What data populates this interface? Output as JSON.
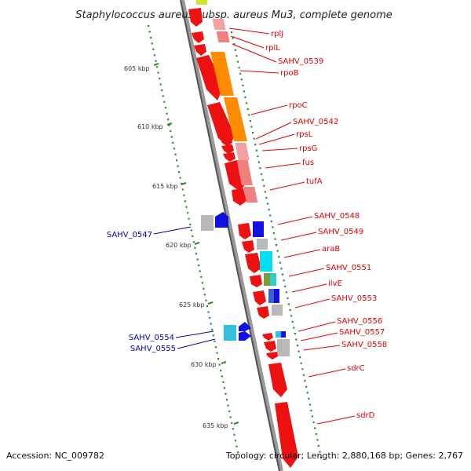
{
  "title": "Staphylococcus aureus subsp. aureus Mu3, complete genome",
  "footer": {
    "accession": "Accession: NC_009782",
    "summary": "Topology: circular; Length: 2,880,168 bp; Genes: 2,767"
  },
  "colors": {
    "backbone": "#8c8c8c",
    "red_gene": "#ee1111",
    "orange_gene": "#ff8c00",
    "pink_gene": "#f08080",
    "gray_gene": "#b8b8b8",
    "blue_gene": "#1010e0",
    "cyan_gene": "#00e0f0",
    "label_red": "#e00000",
    "label_blue": "#0000aa",
    "tick_green": "#2e8b2e"
  },
  "kbp_ticks": [
    "605 kbp",
    "610 kbp",
    "615 kbp",
    "620 kbp",
    "625 kbp",
    "630 kbp",
    "635 kbp"
  ],
  "labels_right": [
    "rplJ",
    "rplL",
    "SAHV_0539",
    "rpoB",
    "rpoC",
    "SAHV_0542",
    "rpsL",
    "rpsG",
    "fus",
    "tufA",
    "SAHV_0548",
    "SAHV_0549",
    "araB",
    "SAHV_0551",
    "ilvE",
    "SAHV_0553",
    "SAHV_0556",
    "SAHV_0557",
    "SAHV_0558",
    "sdrC",
    "sdrD"
  ],
  "labels_left": [
    "SAHV_0547",
    "SAHV_0554",
    "SAHV_0555"
  ]
}
